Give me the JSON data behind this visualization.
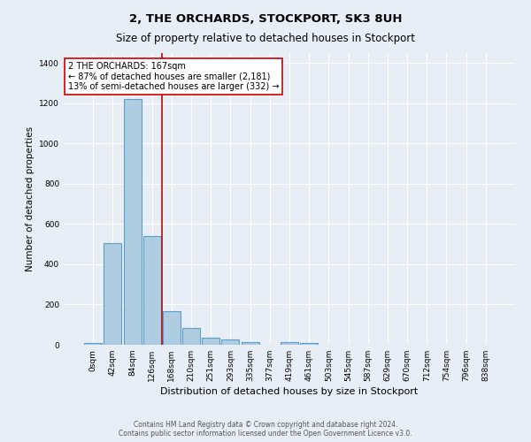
{
  "title": "2, THE ORCHARDS, STOCKPORT, SK3 8UH",
  "subtitle": "Size of property relative to detached houses in Stockport",
  "xlabel": "Distribution of detached houses by size in Stockport",
  "ylabel": "Number of detached properties",
  "bar_labels": [
    "0sqm",
    "42sqm",
    "84sqm",
    "126sqm",
    "168sqm",
    "210sqm",
    "251sqm",
    "293sqm",
    "335sqm",
    "377sqm",
    "419sqm",
    "461sqm",
    "503sqm",
    "545sqm",
    "587sqm",
    "629sqm",
    "670sqm",
    "712sqm",
    "754sqm",
    "796sqm",
    "838sqm"
  ],
  "bar_values": [
    10,
    505,
    1220,
    540,
    165,
    82,
    35,
    27,
    15,
    0,
    13,
    10,
    0,
    0,
    0,
    0,
    0,
    0,
    0,
    0,
    0
  ],
  "bar_color": "#aecde0",
  "bar_edgecolor": "#5a9ec9",
  "bar_linewidth": 0.8,
  "vline_x": 3.5,
  "vline_color": "#cc0000",
  "vline_linewidth": 1.2,
  "annotation_text": "2 THE ORCHARDS: 167sqm\n← 87% of detached houses are smaller (2,181)\n13% of semi-detached houses are larger (332) →",
  "annotation_box_color": "#ffffff",
  "annotation_box_edgecolor": "#cc0000",
  "ylim": [
    0,
    1450
  ],
  "background_color": "#e8eef5",
  "grid_color": "#ffffff",
  "footnote": "Contains HM Land Registry data © Crown copyright and database right 2024.\nContains public sector information licensed under the Open Government Licence v3.0.",
  "title_fontsize": 9.5,
  "subtitle_fontsize": 8.5,
  "xlabel_fontsize": 8,
  "ylabel_fontsize": 7.5,
  "tick_fontsize": 6.5,
  "annotation_fontsize": 7,
  "footnote_fontsize": 5.5
}
